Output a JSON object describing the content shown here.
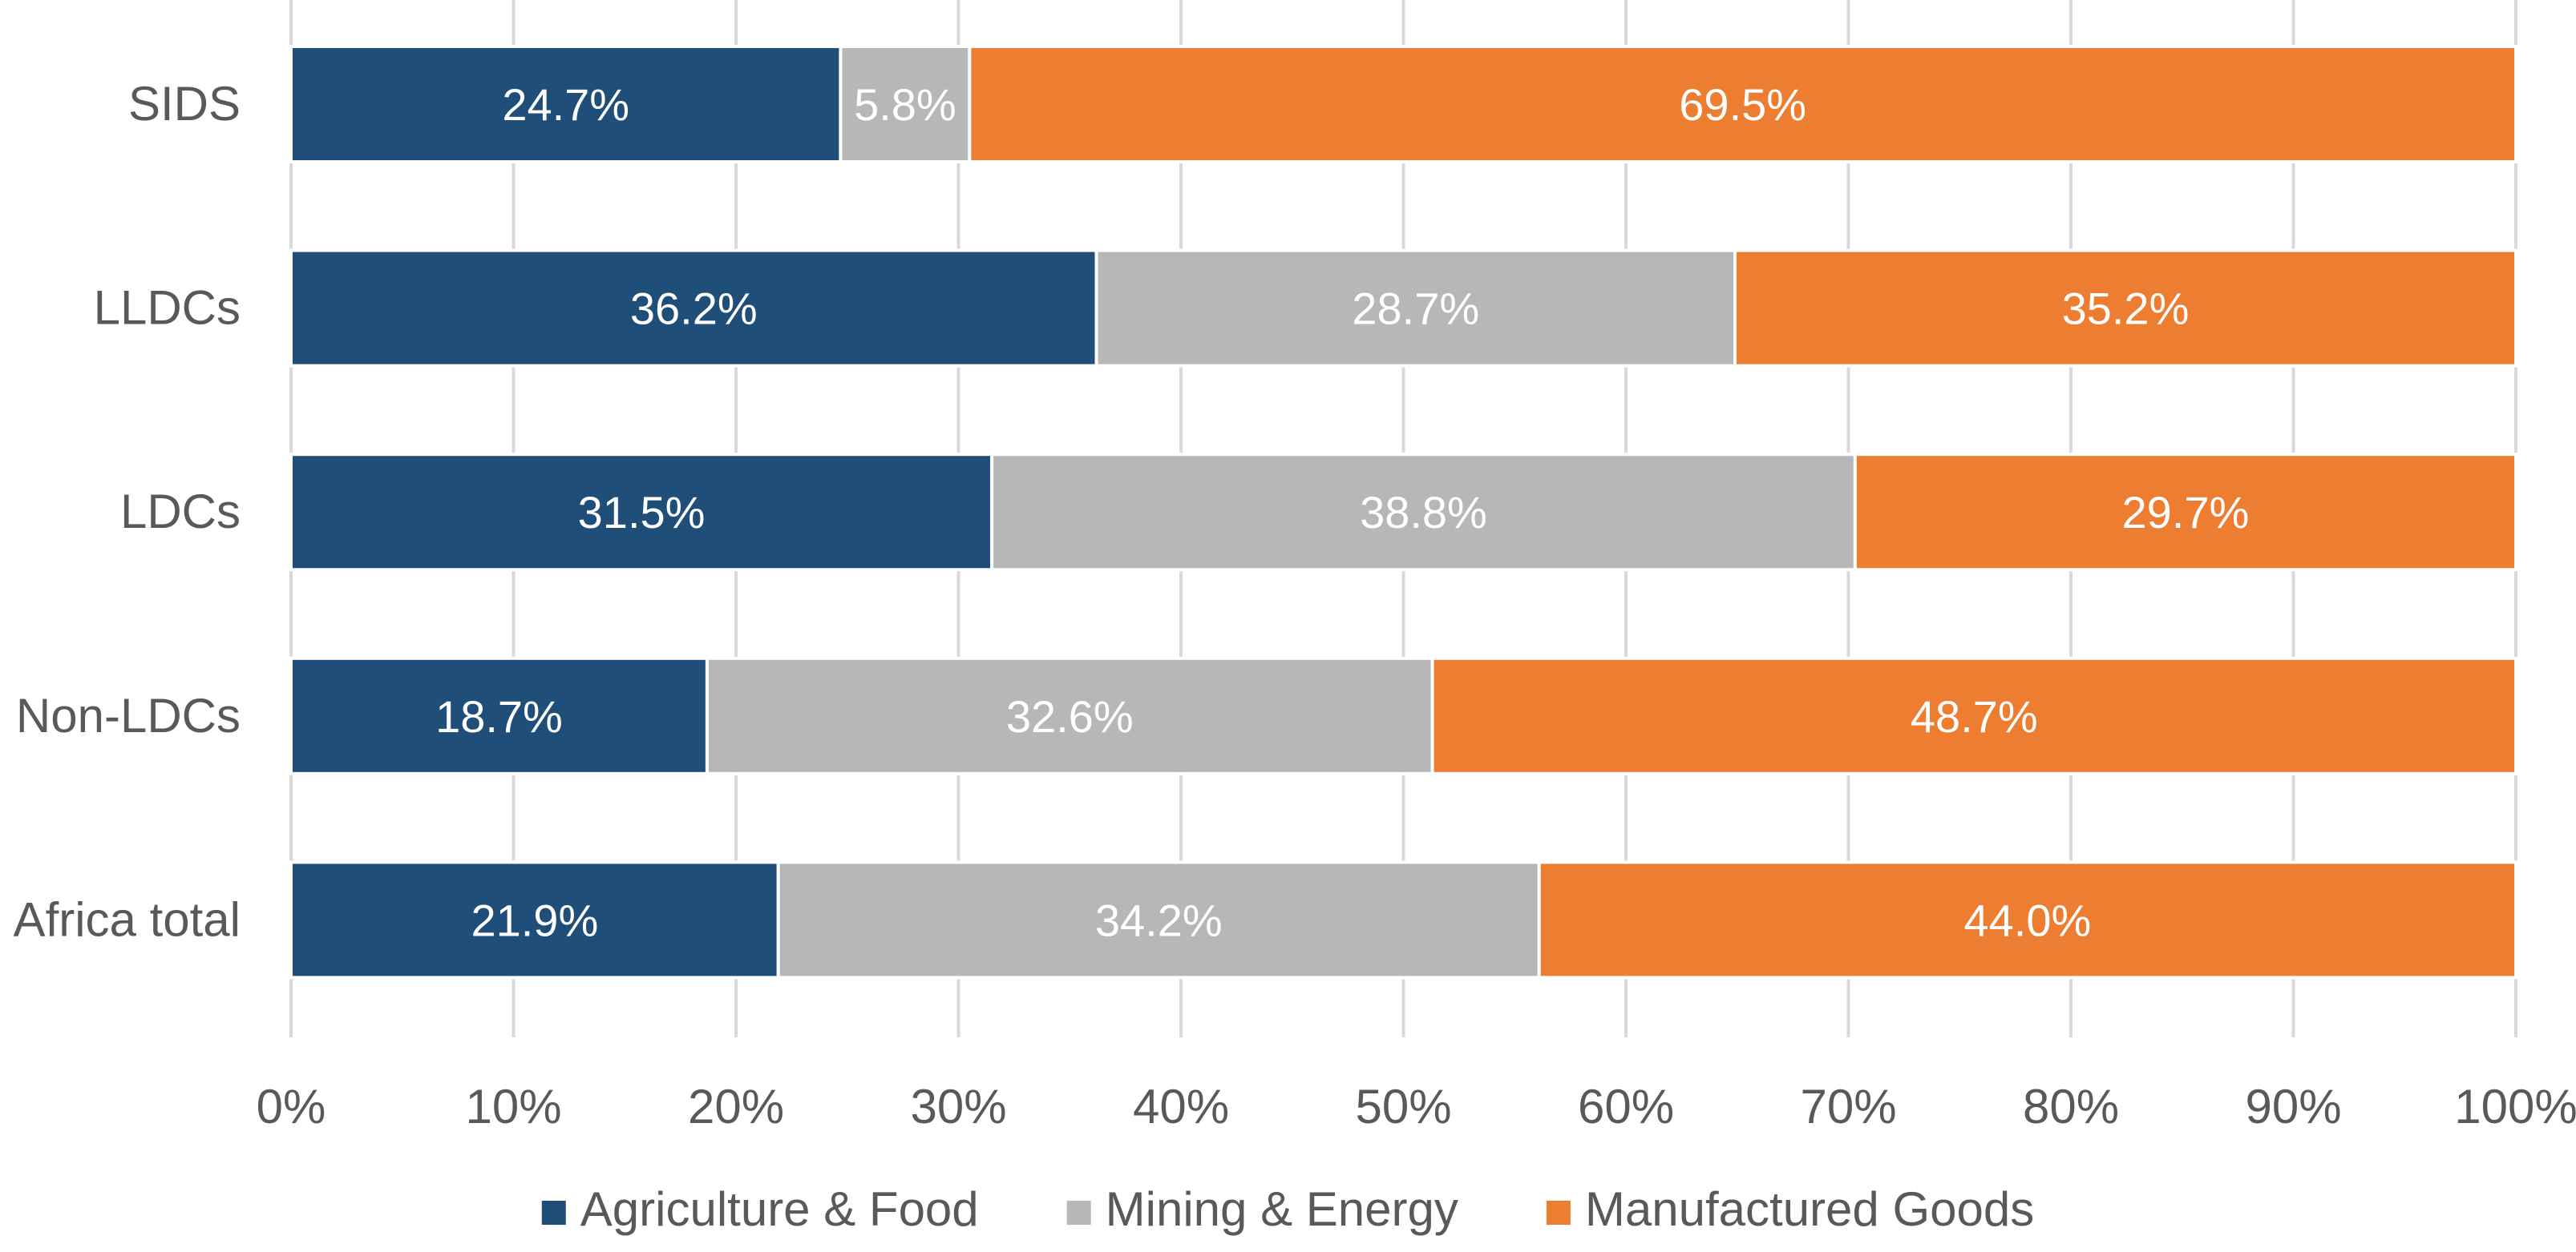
{
  "chart_data": {
    "type": "bar",
    "orientation": "horizontal",
    "stacked": "percent",
    "categories": [
      "SIDS",
      "LLDCs",
      "LDCs",
      "Non-LDCs",
      "Africa total"
    ],
    "series": [
      {
        "name": "Agriculture & Food",
        "color": "#1F4E79",
        "values": [
          24.7,
          36.2,
          31.5,
          18.7,
          21.9
        ],
        "labels": [
          "24.7%",
          "36.2%",
          "31.5%",
          "18.7%",
          "21.9%"
        ]
      },
      {
        "name": "Mining & Energy",
        "color": "#B7B7B7",
        "values": [
          5.8,
          28.7,
          38.8,
          32.6,
          34.2
        ],
        "labels": [
          "5.8%",
          "28.7%",
          "38.8%",
          "32.6%",
          "34.2%"
        ]
      },
      {
        "name": "Manufactured Goods",
        "color": "#ED7D31",
        "values": [
          69.5,
          35.2,
          29.7,
          48.7,
          44.0
        ],
        "labels": [
          "69.5%",
          "35.2%",
          "29.7%",
          "48.7%",
          "44.0%"
        ]
      }
    ],
    "xlim": [
      0,
      100
    ],
    "xticks": [
      "0%",
      "10%",
      "20%",
      "30%",
      "40%",
      "50%",
      "60%",
      "70%",
      "80%",
      "90%",
      "100%"
    ],
    "title": "",
    "xlabel": "",
    "ylabel": "",
    "grid": "vertical",
    "legend_position": "bottom"
  }
}
